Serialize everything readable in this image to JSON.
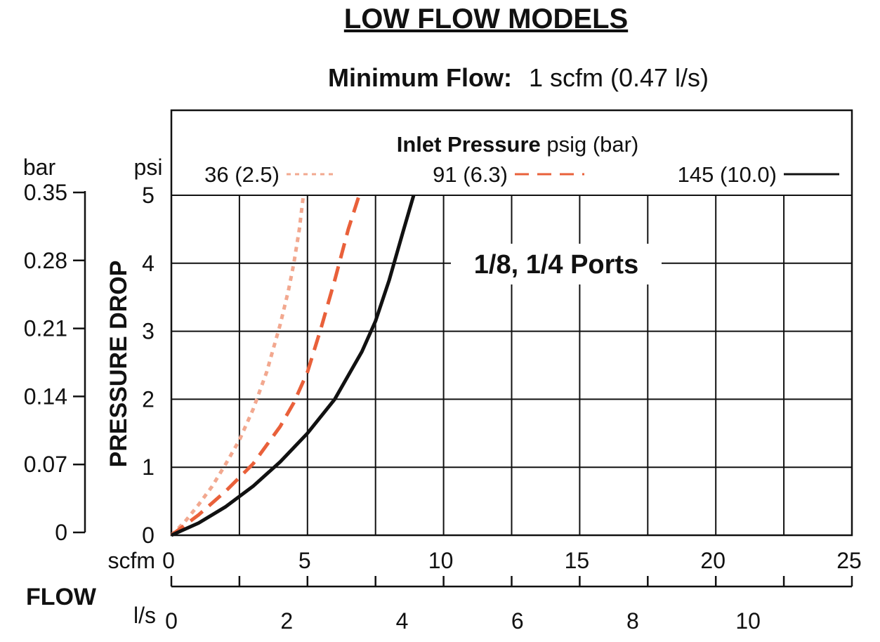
{
  "chart_data": {
    "type": "line",
    "title": "LOW FLOW MODELS",
    "subtitle": {
      "label": "Minimum Flow:",
      "value": "1 scfm (0.47 l/s)"
    },
    "legend": {
      "title_bold": "Inlet Pressure",
      "title_rest": " psig (bar)",
      "placement": "top"
    },
    "annotation": "1/8, 1/4 Ports",
    "x_axis": {
      "label": "FLOW",
      "primary_unit": "scfm",
      "primary_ticks": [
        "0",
        "5",
        "10",
        "15",
        "20",
        "25"
      ],
      "primary_range": [
        0,
        25
      ],
      "secondary_unit": "l/s",
      "secondary_ticks": [
        "0",
        "2",
        "4",
        "6",
        "8",
        "10"
      ]
    },
    "y_axis": {
      "label": "PRESSURE DROP",
      "primary_unit": "psi",
      "primary_ticks": [
        "0",
        "1",
        "2",
        "3",
        "4",
        "5"
      ],
      "primary_range": [
        0,
        5
      ],
      "secondary_unit": "bar",
      "secondary_ticks": [
        "0",
        "0.07",
        "0.14",
        "0.21",
        "0.28",
        "0.35"
      ]
    },
    "grid": true,
    "series": [
      {
        "name": "36 (2.5)",
        "color": "#f2a88f",
        "style": "dotted",
        "x": [
          0,
          0.5,
          1,
          1.5,
          2,
          2.5,
          3,
          3.5,
          4,
          4.3,
          4.5,
          4.7,
          4.85
        ],
        "y": [
          0,
          0.2,
          0.45,
          0.72,
          1.05,
          1.4,
          1.85,
          2.4,
          3.1,
          3.6,
          4.0,
          4.5,
          5.0
        ]
      },
      {
        "name": "91 (6.3)",
        "color": "#e9603a",
        "style": "dashed",
        "x": [
          0,
          1,
          2,
          3,
          4,
          4.5,
          5,
          5.5,
          6,
          6.5,
          6.9
        ],
        "y": [
          0,
          0.3,
          0.65,
          1.05,
          1.6,
          1.95,
          2.4,
          3.05,
          3.75,
          4.5,
          5.0
        ]
      },
      {
        "name": "145 (10.0)",
        "color": "#111111",
        "style": "solid",
        "x": [
          0,
          1,
          2,
          3,
          4,
          5,
          6,
          7,
          7.5,
          8,
          8.5,
          8.9
        ],
        "y": [
          0,
          0.18,
          0.42,
          0.72,
          1.08,
          1.5,
          2.0,
          2.7,
          3.15,
          3.75,
          4.45,
          5.0
        ]
      }
    ]
  }
}
